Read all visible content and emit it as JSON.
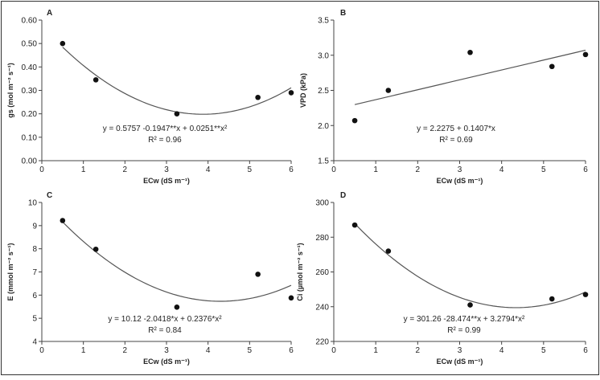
{
  "chart_data": [
    {
      "type": "scatter",
      "panel_label": "A",
      "ylabel": "gs (mol m⁻² s⁻¹)",
      "xlabel": "ECw (dS m⁻¹)",
      "xlim": [
        0,
        6
      ],
      "ylim": [
        0,
        0.6
      ],
      "x_ticks": [
        "0",
        "1",
        "2",
        "3",
        "4",
        "5",
        "6"
      ],
      "y_ticks": [
        "0.00",
        "0.10",
        "0.20",
        "0.30",
        "0.40",
        "0.50",
        "0.60"
      ],
      "points": [
        {
          "x": 0.5,
          "y": 0.5
        },
        {
          "x": 1.3,
          "y": 0.345
        },
        {
          "x": 3.25,
          "y": 0.2
        },
        {
          "x": 5.2,
          "y": 0.27
        },
        {
          "x": 6.0,
          "y": 0.29
        }
      ],
      "fit": {
        "kind": "quadratic",
        "coef": [
          0.5757,
          -0.1947,
          0.0251
        ],
        "x_range": [
          0.5,
          6.0
        ]
      },
      "equation": "y = 0.5757 -0.1947**x + 0.0251**x²",
      "r2": "R² = 0.96"
    },
    {
      "type": "scatter",
      "panel_label": "B",
      "ylabel": "VPD (kPa)",
      "xlabel": "ECw (dS m⁻¹)",
      "xlim": [
        0,
        6
      ],
      "ylim": [
        1.5,
        3.5
      ],
      "x_ticks": [
        "0",
        "1",
        "2",
        "3",
        "4",
        "5",
        "6"
      ],
      "y_ticks": [
        "1.5",
        "2.0",
        "2.5",
        "3.0",
        "3.5"
      ],
      "points": [
        {
          "x": 0.5,
          "y": 2.07
        },
        {
          "x": 1.3,
          "y": 2.5
        },
        {
          "x": 3.25,
          "y": 3.04
        },
        {
          "x": 5.2,
          "y": 2.84
        },
        {
          "x": 6.0,
          "y": 3.01
        }
      ],
      "fit": {
        "kind": "linear",
        "coef": [
          2.2275,
          0.1407
        ],
        "x_range": [
          0.5,
          6.0
        ]
      },
      "equation": "y = 2.2275 + 0.1407*x",
      "r2": "R² = 0.69"
    },
    {
      "type": "scatter",
      "panel_label": "C",
      "ylabel": "E (mmol m⁻² s⁻¹)",
      "xlabel": "ECw (dS m⁻¹)",
      "xlim": [
        0,
        6
      ],
      "ylim": [
        4,
        10
      ],
      "x_ticks": [
        "0",
        "1",
        "2",
        "3",
        "4",
        "5",
        "6"
      ],
      "y_ticks": [
        "4",
        "5",
        "6",
        "7",
        "8",
        "9",
        "10"
      ],
      "points": [
        {
          "x": 0.5,
          "y": 9.22
        },
        {
          "x": 1.3,
          "y": 7.98
        },
        {
          "x": 3.25,
          "y": 5.48
        },
        {
          "x": 5.2,
          "y": 6.9
        },
        {
          "x": 6.0,
          "y": 5.88
        }
      ],
      "fit": {
        "kind": "quadratic",
        "coef": [
          10.12,
          -2.0418,
          0.2376
        ],
        "x_range": [
          0.5,
          6.0
        ]
      },
      "equation": "y = 10.12 -2.0418*x + 0.2376*x²",
      "r2": "R² = 0.84"
    },
    {
      "type": "scatter",
      "panel_label": "D",
      "ylabel": "Ci (µmol m⁻² s⁻¹)",
      "xlabel": "ECw (dS m⁻¹)",
      "xlim": [
        0,
        6
      ],
      "ylim": [
        220,
        300
      ],
      "x_ticks": [
        "0",
        "1",
        "2",
        "3",
        "4",
        "5",
        "6"
      ],
      "y_ticks": [
        "220",
        "240",
        "260",
        "280",
        "300"
      ],
      "points": [
        {
          "x": 0.5,
          "y": 287
        },
        {
          "x": 1.3,
          "y": 272
        },
        {
          "x": 3.25,
          "y": 241
        },
        {
          "x": 5.2,
          "y": 244.5
        },
        {
          "x": 6.0,
          "y": 247
        }
      ],
      "fit": {
        "kind": "quadratic",
        "coef": [
          301.26,
          -28.474,
          3.2794
        ],
        "x_range": [
          0.5,
          6.0
        ]
      },
      "equation": "y = 301.26 -28.474**x + 3.2794*x²",
      "r2": "R² = 0.99"
    }
  ]
}
